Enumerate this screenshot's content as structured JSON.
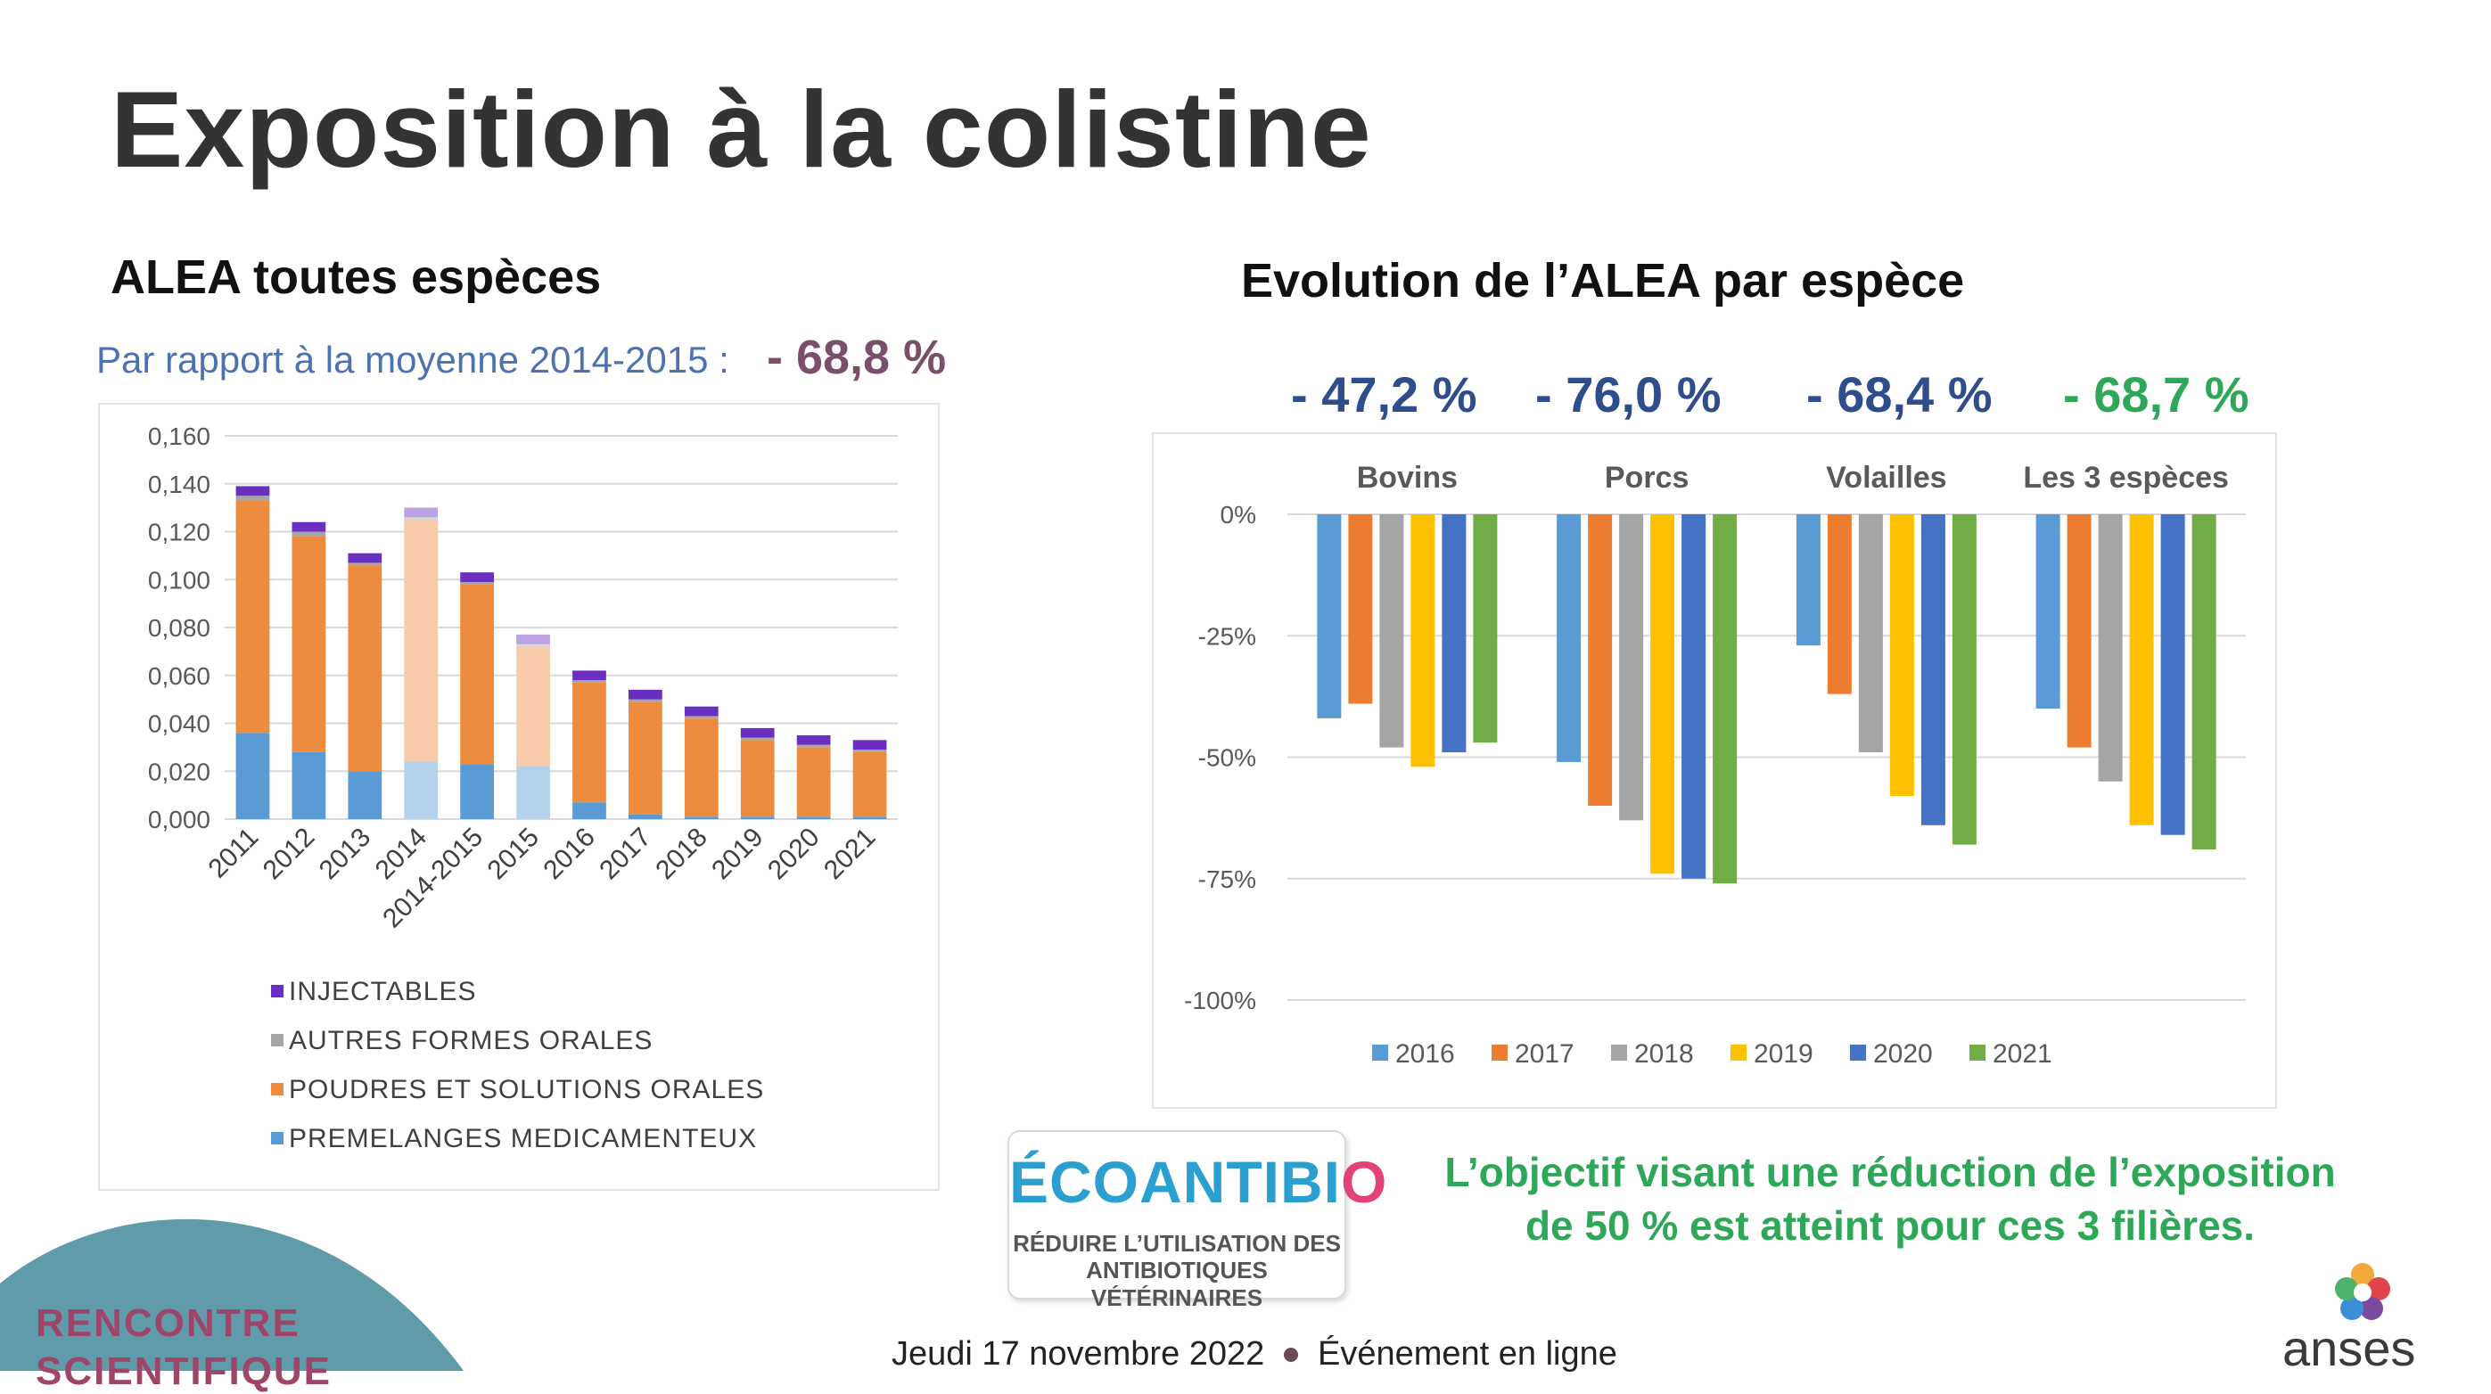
{
  "title": "Exposition à la colistine",
  "left_panel": {
    "heading": "ALEA toutes espèces",
    "subtitle": "Par rapport à la moyenne 2014-2015 :",
    "subtitle_value": "- 68,8 %"
  },
  "right_panel": {
    "heading": "Evolution de l’ALEA par espèce",
    "percents": [
      {
        "label": "- 47,2 %",
        "color": "#2e4d8c"
      },
      {
        "label": "- 76,0 %",
        "color": "#2e4d8c"
      },
      {
        "label": "- 68,4 %",
        "color": "#2e4d8c"
      },
      {
        "label": "- 68,7 %",
        "color": "#2fa758"
      }
    ]
  },
  "logo": {
    "name": "ÉCOANTIBIO",
    "tagline_line1": "RÉDUIRE L’UTILISATION DES",
    "tagline_line2": "ANTIBIOTIQUES VÉTÉRINAIRES"
  },
  "objective": {
    "line1": "L’objectif visant une réduction de l’exposition",
    "line2": "de 50 % est atteint pour ces 3 filières."
  },
  "footer": {
    "date": "Jeudi 17 novembre 2022",
    "event": "Événement en ligne",
    "event_name_line1": "RENCONTRE",
    "event_name_line2": "SCIENTIFIQUE",
    "org": "anses"
  },
  "chart_data": [
    {
      "type": "bar",
      "stacked": true,
      "categories": [
        "2011",
        "2012",
        "2013",
        "2014",
        "2014-2015",
        "2015",
        "2016",
        "2017",
        "2018",
        "2019",
        "2020",
        "2021"
      ],
      "faded_categories": [
        "2014",
        "2015"
      ],
      "ylim": [
        0,
        0.16
      ],
      "yticks": [
        "0,000",
        "0,020",
        "0,040",
        "0,060",
        "0,080",
        "0,100",
        "0,120",
        "0,140",
        "0,160"
      ],
      "grid": true,
      "legend_position": "bottom",
      "series": [
        {
          "name": "PREMELANGES MEDICAMENTEUX",
          "color": "#5b9bd5",
          "values": [
            0.036,
            0.028,
            0.02,
            0.024,
            0.023,
            0.022,
            0.007,
            0.002,
            0.001,
            0.001,
            0.001,
            0.001
          ]
        },
        {
          "name": "POUDRES ET SOLUTIONS ORALES",
          "color": "#ed8b3f",
          "values": [
            0.097,
            0.09,
            0.086,
            0.101,
            0.075,
            0.05,
            0.05,
            0.047,
            0.041,
            0.032,
            0.029,
            0.027
          ]
        },
        {
          "name": "AUTRES FORMES ORALES",
          "color": "#a5a5a5",
          "values": [
            0.002,
            0.002,
            0.001,
            0.001,
            0.001,
            0.001,
            0.001,
            0.001,
            0.001,
            0.001,
            0.001,
            0.001
          ]
        },
        {
          "name": "INJECTABLES",
          "color": "#6a2fc0",
          "values": [
            0.004,
            0.004,
            0.004,
            0.004,
            0.004,
            0.004,
            0.004,
            0.004,
            0.004,
            0.004,
            0.004,
            0.004
          ]
        }
      ],
      "legend_order": [
        "INJECTABLES",
        "AUTRES FORMES ORALES",
        "POUDRES ET SOLUTIONS ORALES",
        "PREMELANGES MEDICAMENTEUX"
      ]
    },
    {
      "type": "bar",
      "categories": [
        "Bovins",
        "Porcs",
        "Volailles",
        "Les 3 espèces"
      ],
      "ylim": [
        -100,
        0
      ],
      "yticks": [
        "0%",
        "-25%",
        "-50%",
        "-75%",
        "-100%"
      ],
      "grid": true,
      "legend_position": "bottom",
      "series": [
        {
          "name": "2016",
          "color": "#5b9bd5",
          "values": [
            -42,
            -51,
            -27,
            -40
          ]
        },
        {
          "name": "2017",
          "color": "#ed7d31",
          "values": [
            -39,
            -60,
            -37,
            -48
          ]
        },
        {
          "name": "2018",
          "color": "#a5a5a5",
          "values": [
            -48,
            -63,
            -49,
            -55
          ]
        },
        {
          "name": "2019",
          "color": "#ffc000",
          "values": [
            -52,
            -74,
            -58,
            -64
          ]
        },
        {
          "name": "2020",
          "color": "#4472c4",
          "values": [
            -49,
            -75,
            -64,
            -66
          ]
        },
        {
          "name": "2021",
          "color": "#70ad47",
          "values": [
            -47,
            -76,
            -68,
            -69
          ]
        }
      ]
    }
  ]
}
